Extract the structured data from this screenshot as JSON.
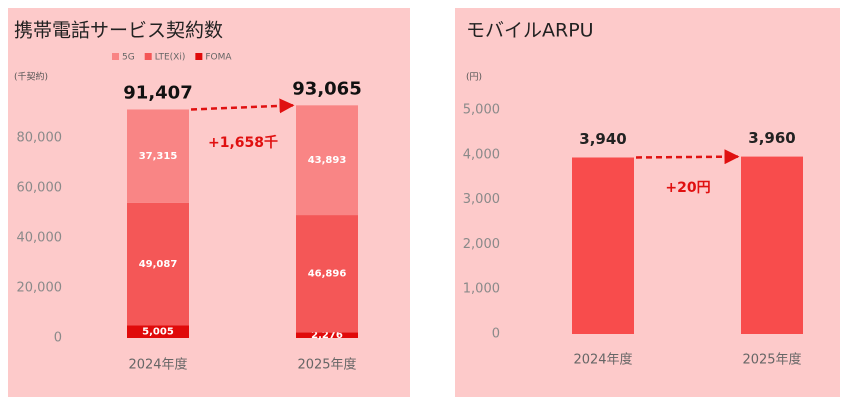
{
  "chart_data": [
    {
      "type": "bar",
      "stacked": true,
      "title": "携帯電話サービス契約数",
      "unit_label": "(千契約)",
      "categories": [
        "2024年度",
        "2025年度"
      ],
      "series": [
        {
          "name": "FOMA",
          "color": "#e00a0a",
          "values": [
            5005,
            2276
          ],
          "value_labels": [
            "5,005",
            "2,276"
          ]
        },
        {
          "name": "LTE(Xi)",
          "color": "#f45757",
          "values": [
            49087,
            46896
          ],
          "value_labels": [
            "49,087",
            "46,896"
          ]
        },
        {
          "name": "5G",
          "color": "#f98585",
          "values": [
            37315,
            43893
          ],
          "value_labels": [
            "37,315",
            "43,893"
          ]
        }
      ],
      "totals": [
        91407,
        93065
      ],
      "total_labels": [
        "91,407",
        "93,065"
      ],
      "annotation": "+1,658千",
      "legend": "top",
      "ylim": [
        0,
        95000
      ],
      "yticks": [
        0,
        {
          "value": 20000,
          "label": "20,000"
        },
        {
          "value": 40000,
          "label": "40,000"
        },
        {
          "value": 60000,
          "label": "60,000"
        },
        {
          "value": 80000,
          "label": "80,000"
        }
      ]
    },
    {
      "type": "bar",
      "title": "モバイルARPU",
      "unit_label": "(円)",
      "categories": [
        "2024年度",
        "2025年度"
      ],
      "values": [
        3940,
        3960
      ],
      "value_labels": [
        "3,940",
        "3,960"
      ],
      "color": "#f84c4c",
      "annotation": "+20円",
      "ylim": [
        0,
        5000
      ],
      "yticks": [
        0,
        {
          "value": 1000,
          "label": "1,000"
        },
        {
          "value": 2000,
          "label": "2,000"
        },
        {
          "value": 3000,
          "label": "3,000"
        },
        {
          "value": 4000,
          "label": "4,000"
        },
        {
          "value": 5000,
          "label": "5,000"
        }
      ]
    }
  ]
}
